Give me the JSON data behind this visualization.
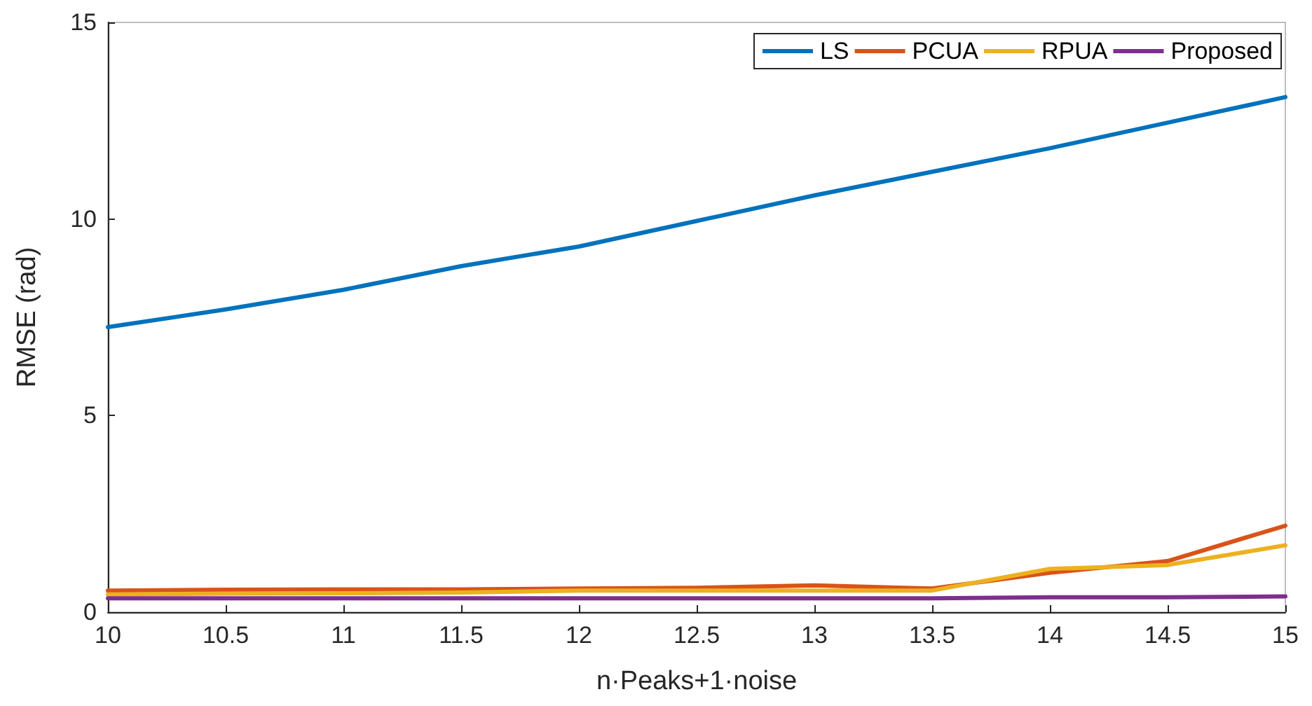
{
  "chart_data": {
    "type": "line",
    "xlabel": "n·Peaks+1·noise",
    "ylabel": "RMSE (rad)",
    "x": [
      10,
      10.5,
      11,
      11.5,
      12,
      12.5,
      13,
      13.5,
      14,
      14.5,
      15
    ],
    "series": [
      {
        "name": "LS",
        "color": "#0072bd",
        "values": [
          7.25,
          7.7,
          8.2,
          8.8,
          9.3,
          9.95,
          10.6,
          11.2,
          11.8,
          12.45,
          13.1
        ]
      },
      {
        "name": "PCUA",
        "color": "#d95319",
        "values": [
          0.55,
          0.57,
          0.58,
          0.58,
          0.6,
          0.62,
          0.68,
          0.6,
          1.0,
          1.3,
          2.2
        ]
      },
      {
        "name": "RPUA",
        "color": "#edb120",
        "values": [
          0.45,
          0.47,
          0.48,
          0.5,
          0.55,
          0.55,
          0.55,
          0.55,
          1.1,
          1.2,
          1.7
        ]
      },
      {
        "name": "Proposed",
        "color": "#7e2f8e",
        "values": [
          0.35,
          0.35,
          0.35,
          0.35,
          0.35,
          0.35,
          0.35,
          0.35,
          0.38,
          0.38,
          0.4
        ]
      }
    ],
    "xlim": [
      10,
      15
    ],
    "xticks": [
      10,
      10.5,
      11,
      11.5,
      12,
      12.5,
      13,
      13.5,
      14,
      14.5,
      15
    ],
    "ylim": [
      0,
      15
    ],
    "yticks": [
      0,
      5,
      10,
      15
    ],
    "grid": false,
    "legend": "top right",
    "marker": "none",
    "line_style": "solid"
  }
}
